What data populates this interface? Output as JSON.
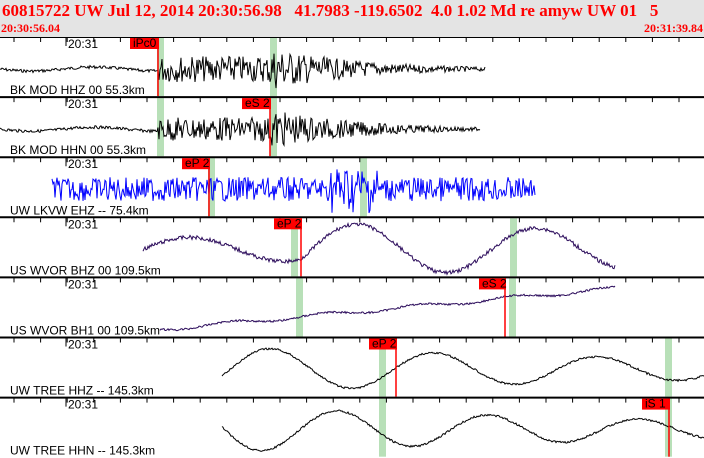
{
  "header": {
    "title": "60815722 UW Jul 12, 2014 20:30:56.98   41.7983 -119.6502  4.0 1.02 Md re amyw UW 01   5",
    "start_time": "20:30:56.04",
    "end_time": "20:31:39.84"
  },
  "colors": {
    "header_text": "#ff0000",
    "pick": "#ff0000",
    "pick_window": "#b8e0b8",
    "default_trace": "#000000"
  },
  "channels": [
    {
      "label": "BK MOD HHZ 00 55.3km",
      "time_tick": "20:31",
      "pick": "iPc0",
      "trace_color": "#000000"
    },
    {
      "label": "BK MOD HHN 00 55.3km",
      "time_tick": "20:31",
      "pick": "eS 2",
      "trace_color": "#000000"
    },
    {
      "label": "UW LKVW EHZ -- 75.4km",
      "time_tick": "20:31",
      "pick": "eP 2",
      "trace_color": "#0000ff"
    },
    {
      "label": "US WVOR BHZ 00 109.5km",
      "time_tick": "20:31",
      "pick": "eP 2",
      "trace_color": "#2a0a5a"
    },
    {
      "label": "US WVOR BH1 00 109.5km",
      "time_tick": "20:31",
      "pick": "eS 2",
      "trace_color": "#2a0a5a"
    },
    {
      "label": "UW TREE HHZ -- 145.3km",
      "time_tick": "20:31",
      "pick": "eP 2",
      "trace_color": "#000000"
    },
    {
      "label": "UW TREE HHN -- 145.3km",
      "time_tick": "20:31",
      "pick": "iS 1",
      "trace_color": "#000000"
    }
  ]
}
